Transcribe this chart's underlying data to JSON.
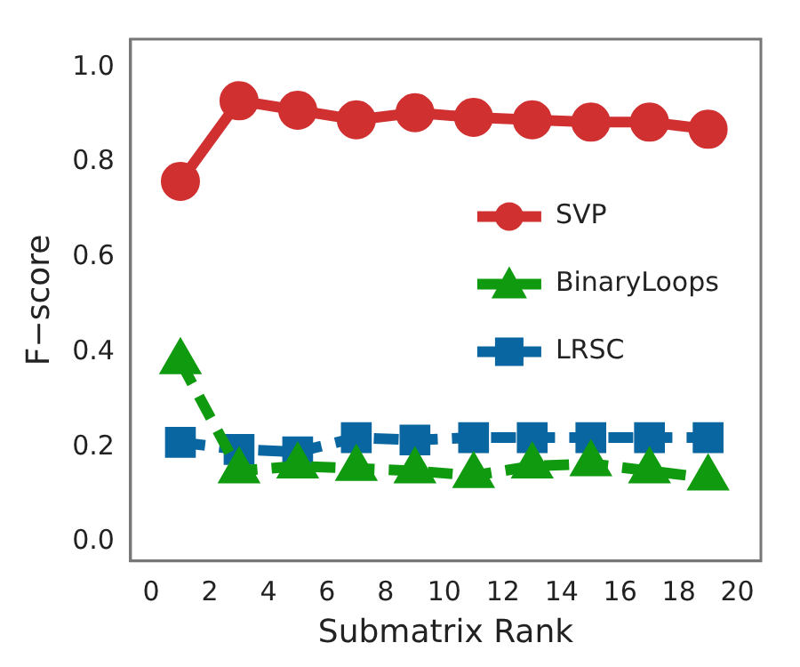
{
  "chart_data": {
    "type": "line",
    "xlabel": "Submatrix Rank",
    "ylabel": "F−score",
    "x": [
      1,
      3,
      5,
      7,
      9,
      11,
      13,
      15,
      17,
      19
    ],
    "series": [
      {
        "name": "SVP",
        "color": "#d03030",
        "marker": "circle",
        "line_style": "solid",
        "values": [
          0.76,
          0.93,
          0.91,
          0.89,
          0.905,
          0.895,
          0.89,
          0.885,
          0.885,
          0.87
        ]
      },
      {
        "name": "BinaryLoops",
        "color": "#109a10",
        "marker": "triangle",
        "line_style": "dashed",
        "values": [
          0.38,
          0.15,
          0.16,
          0.155,
          0.15,
          0.14,
          0.16,
          0.165,
          0.15,
          0.135
        ]
      },
      {
        "name": "LRSC",
        "color": "#0a66a0",
        "marker": "square",
        "line_style": "dashed",
        "values": [
          0.21,
          0.195,
          0.19,
          0.22,
          0.215,
          0.22,
          0.22,
          0.22,
          0.22,
          0.22
        ]
      }
    ],
    "xlim": [
      -0.7,
      20.8
    ],
    "xticks": [
      0,
      2,
      4,
      6,
      8,
      10,
      12,
      14,
      16,
      18,
      20
    ],
    "ylim": [
      -0.04,
      1.06
    ],
    "yticks": [
      {
        "value": 0,
        "label": "0.0"
      },
      {
        "value": 0.2,
        "label": "0.2"
      },
      {
        "value": 0.4,
        "label": "0.4"
      },
      {
        "value": 0.6,
        "label": "0.6"
      },
      {
        "value": 0.8,
        "label": "0.8"
      },
      {
        "value": 1,
        "label": "1.0"
      }
    ],
    "grid": false,
    "legend": "right"
  }
}
